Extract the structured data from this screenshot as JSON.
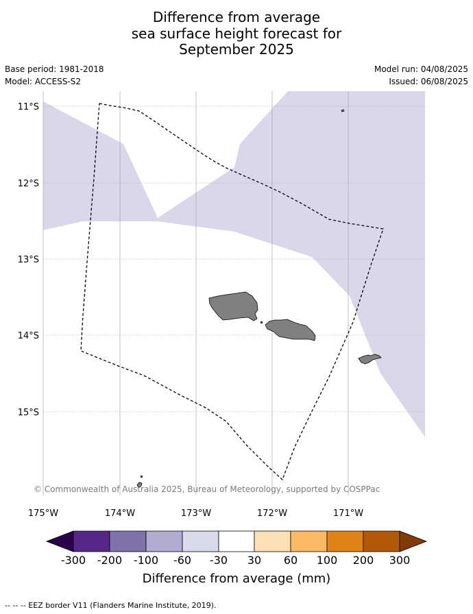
{
  "title": {
    "line1": "Difference from average",
    "line2": "sea surface height forecast for",
    "line3": "September 2025"
  },
  "meta": {
    "base_period": "Base period: 1981-2018",
    "model": "Model: ACCESS-S2",
    "model_run": "Model run: 04/08/2025",
    "issued": "Issued: 06/08/2025"
  },
  "map": {
    "latitude_labels": [
      "11°S",
      "12°S",
      "13°S",
      "14°S",
      "15°S"
    ],
    "longitude_labels": [
      "175°W",
      "174°W",
      "173°W",
      "172°W",
      "171°W"
    ],
    "copyright": "© Commonwealth of Australia 2025, Bureau of Meteorology, supported by COSPPac",
    "background_color": "#ffffff",
    "anomaly_color": "#d8d8ea",
    "land_color": "#808080"
  },
  "colorbar": {
    "tick_labels": [
      "-300",
      "-200",
      "-100",
      "-60",
      "-30",
      "30",
      "60",
      "100",
      "200",
      "300"
    ],
    "colors": [
      "#2d004b",
      "#542788",
      "#8073ac",
      "#b2abd2",
      "#d8daeb",
      "#ffffff",
      "#fee0b6",
      "#fdb863",
      "#e08214",
      "#b35806",
      "#7f3b08"
    ],
    "title": "Difference from average (mm)"
  },
  "footnote": "--  --  -- EEZ border V11 (Flanders Marine Institute, 2019)."
}
